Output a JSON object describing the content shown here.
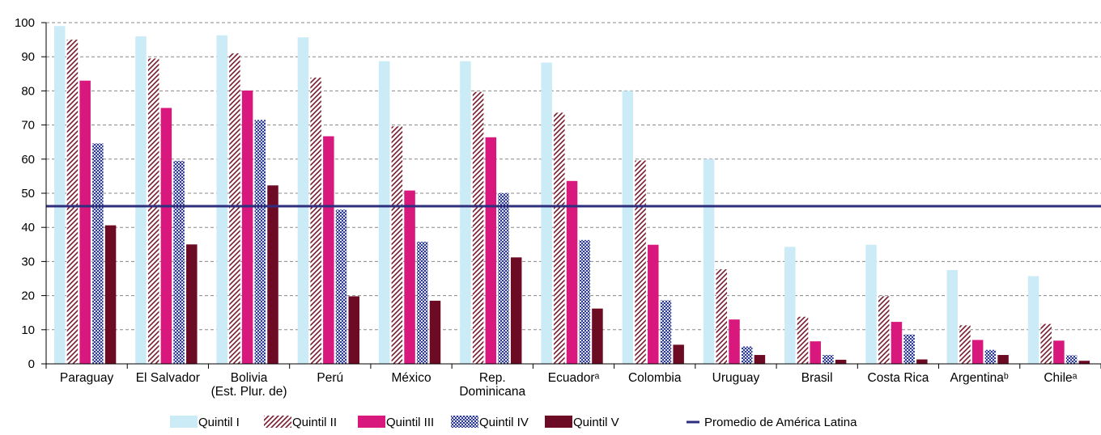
{
  "chart_data": {
    "type": "bar",
    "categories": [
      "Paraguay",
      "El Salvador",
      "Bolivia\n(Est. Plur. de)",
      "Perú",
      "México",
      "Rep.\nDominicana",
      "Ecuadorᵃ",
      "Colombia",
      "Uruguay",
      "Brasil",
      "Costa Rica",
      "Argentinaᵇ",
      "Chileᵃ"
    ],
    "series": [
      {
        "name": "Quintil I",
        "color": "#cbecf7",
        "pattern": "solid",
        "values": [
          99,
          96,
          96.3,
          95.7,
          88.7,
          88.7,
          88.3,
          80,
          60,
          34.3,
          34.9,
          27.5,
          25.7
        ]
      },
      {
        "name": "Quintil II",
        "color": "#7a1a2e",
        "pattern": "diagonal-hatch",
        "values": [
          95,
          89.5,
          91,
          83.9,
          69.6,
          79.7,
          73.6,
          59.6,
          27.7,
          13.8,
          19.8,
          11.3,
          11.7
        ]
      },
      {
        "name": "Quintil III",
        "color": "#d9187d",
        "pattern": "solid",
        "values": [
          83,
          75,
          80.1,
          66.7,
          50.8,
          66.4,
          53.6,
          34.9,
          13,
          6.6,
          12.3,
          7,
          6.8
        ]
      },
      {
        "name": "Quintil IV",
        "color": "#2e3a8c",
        "pattern": "checkered",
        "values": [
          64.6,
          59.5,
          71.5,
          45.2,
          35.8,
          50,
          36.3,
          18.6,
          5.1,
          2.6,
          8.6,
          4.1,
          2.5
        ]
      },
      {
        "name": "Quintil V",
        "color": "#6e0b24",
        "pattern": "solid",
        "values": [
          40.6,
          35,
          52.3,
          19.8,
          18.5,
          31.2,
          16.2,
          5.6,
          2.6,
          1.2,
          1.3,
          2.6,
          0.9
        ]
      }
    ],
    "reference_line": {
      "name": "Promedio de América Latina",
      "value": 46.2,
      "color": "#2e2e7e"
    },
    "yticks": [
      0,
      10,
      20,
      30,
      40,
      50,
      60,
      70,
      80,
      90,
      100
    ],
    "ylim": [
      0,
      100
    ],
    "title": "",
    "xlabel": "",
    "ylabel": "",
    "grid": "horizontal-dashed",
    "legend": "bottom"
  }
}
